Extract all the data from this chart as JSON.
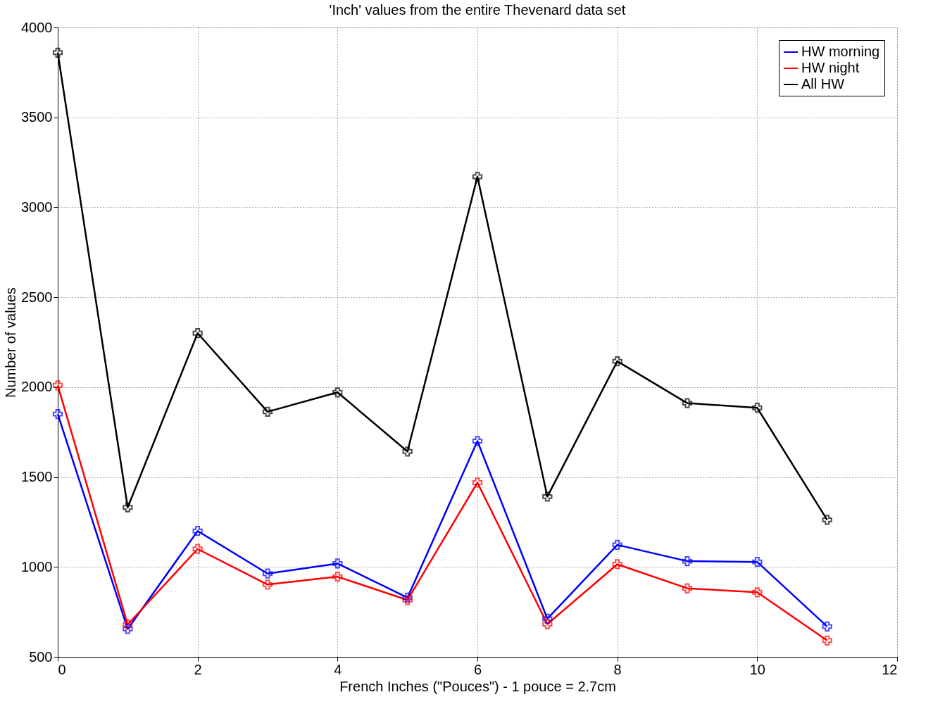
{
  "chart_data": {
    "type": "line",
    "title": "'Inch' values from the entire Thevenard data set",
    "xlabel": "French Inches (\"Pouces\") - 1 pouce = 2.7cm",
    "ylabel": "Number of values",
    "x": [
      0,
      1,
      2,
      3,
      4,
      5,
      6,
      7,
      8,
      9,
      10,
      11
    ],
    "series": [
      {
        "name": "HW morning",
        "color": "#0000ff",
        "values": [
          1850,
          655,
          1200,
          963,
          1019,
          829,
          1700,
          712,
          1123,
          1032,
          1028,
          669
        ]
      },
      {
        "name": "HW night",
        "color": "#ff0000",
        "values": [
          2010,
          680,
          1100,
          902,
          946,
          816,
          1469,
          682,
          1015,
          881,
          859,
          591
        ]
      },
      {
        "name": "All HW",
        "color": "#000000",
        "values": [
          3860,
          1331,
          2300,
          1863,
          1971,
          1642,
          3170,
          1391,
          2144,
          1911,
          1885,
          1262
        ]
      }
    ],
    "xlim": [
      0,
      12
    ],
    "xticks": [
      0,
      2,
      4,
      6,
      8,
      10,
      12
    ],
    "ylim": [
      500,
      4000
    ],
    "yticks": [
      500,
      1000,
      1500,
      2000,
      2500,
      3000,
      3500,
      4000
    ],
    "grid": true,
    "legend": "top right",
    "marker": "cross",
    "line_style": "solid"
  }
}
